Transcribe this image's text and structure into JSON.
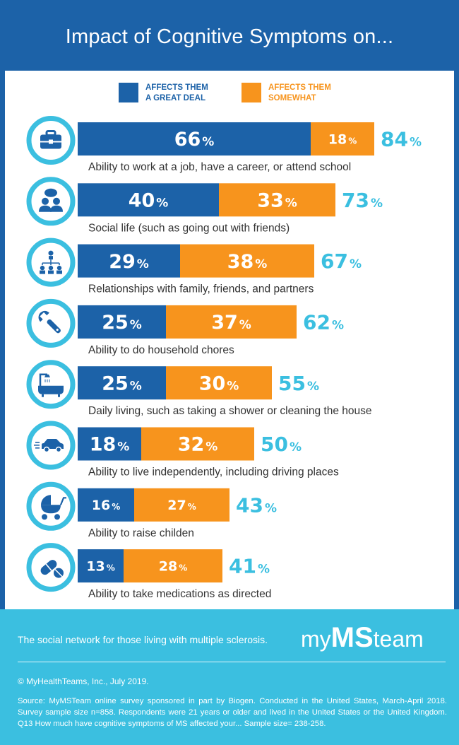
{
  "title": "Impact of Cognitive Symptoms on...",
  "colors": {
    "great_deal": "#1c62a8",
    "somewhat": "#f7941d",
    "total": "#3bbfe0",
    "icon_ring": "#3bbfe0",
    "icon_fill": "#1c62a8"
  },
  "legend": {
    "great_deal_line1": "AFFECTS THEM",
    "great_deal_line2": "A GREAT DEAL",
    "somewhat_line1": "AFFECTS THEM",
    "somewhat_line2": "SOMEWHAT"
  },
  "chart_data": {
    "type": "bar",
    "orientation": "horizontal-stacked",
    "unit": "%",
    "categories": [
      "Ability to work at a job, have a career, or attend school",
      "Social life (such as going out with friends)",
      "Relationships with family, friends, and partners",
      "Ability to do household chores",
      "Daily living, such as taking a shower or cleaning the house",
      "Ability to live independently, including driving places",
      "Ability to raise childen",
      "Ability to take medications as directed"
    ],
    "icons": [
      "briefcase-icon",
      "social-chat-icon",
      "family-tree-icon",
      "wrench-icon",
      "bathtub-shower-icon",
      "car-icon",
      "baby-stroller-icon",
      "pills-icon"
    ],
    "series": [
      {
        "name": "AFFECTS THEM A GREAT DEAL",
        "values": [
          66,
          40,
          29,
          25,
          25,
          18,
          16,
          13
        ]
      },
      {
        "name": "AFFECTS THEM SOMEWHAT",
        "values": [
          18,
          33,
          38,
          37,
          30,
          32,
          27,
          28
        ]
      }
    ],
    "totals": [
      84,
      73,
      67,
      62,
      55,
      50,
      43,
      41
    ],
    "legend_position": "top"
  },
  "footer": {
    "tagline": "The social network for those living with multiple sclerosis.",
    "brand_left": "my",
    "brand_mid": "MS",
    "brand_right": "team",
    "copyright": "© MyHealthTeams, Inc., July 2019.",
    "source": "Source: MyMSTeam online survey sponsored in part by Biogen. Conducted in the United States, March-April 2018. Survey sample size n=858. Respondents were 21 years or older and lived in the United States or the United Kingdom. Q13 How much have cognitive symptoms of MS affected your... Sample size= 238-258."
  }
}
